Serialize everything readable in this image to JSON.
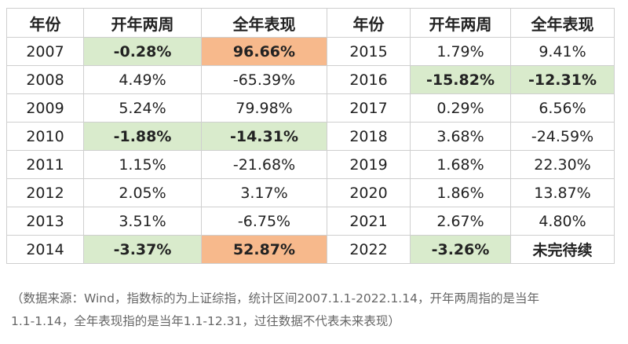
{
  "header": {
    "col1": "年份",
    "col2": "开年两周",
    "col3": "全年表现",
    "col4": "年份",
    "col5": "开年两周",
    "col6": "全年表现"
  },
  "rows": [
    {
      "y1": "2007",
      "a1": "-0.28%",
      "b1": "96.66%",
      "y2": "2015",
      "a2": "1.79%",
      "b2": "9.41%"
    },
    {
      "y1": "2008",
      "a1": "4.49%",
      "b1": "-65.39%",
      "y2": "2016",
      "a2": "-15.82%",
      "b2": "-12.31%"
    },
    {
      "y1": "2009",
      "a1": "5.24%",
      "b1": "79.98%",
      "y2": "2017",
      "a2": "0.29%",
      "b2": "6.56%"
    },
    {
      "y1": "2010",
      "a1": "-1.88%",
      "b1": "-14.31%",
      "y2": "2018",
      "a2": "3.68%",
      "b2": "-24.59%"
    },
    {
      "y1": "2011",
      "a1": "1.15%",
      "b1": "-21.68%",
      "y2": "2019",
      "a2": "1.68%",
      "b2": "22.30%"
    },
    {
      "y1": "2012",
      "a1": "2.05%",
      "b1": "3.17%",
      "y2": "2020",
      "a2": "1.86%",
      "b2": "13.87%"
    },
    {
      "y1": "2013",
      "a1": "3.51%",
      "b1": "-6.75%",
      "y2": "2021",
      "a2": "2.67%",
      "b2": "4.80%"
    },
    {
      "y1": "2014",
      "a1": "-3.37%",
      "b1": "52.87%",
      "y2": "2022",
      "a2": "-3.26%",
      "b2": "未完待续"
    }
  ],
  "colors": {
    "green_highlight": "#d9ebcc",
    "orange_highlight": "#f7b98c"
  },
  "note": {
    "line1": "（数据来源：Wind，指数标的为上证综指，统计区间2007.1.1-2022.1.14，开年两周指的是当年",
    "line2": "1.1-1.14，全年表现指的是当年1.1-12.31，过往数据不代表未来表现）"
  }
}
